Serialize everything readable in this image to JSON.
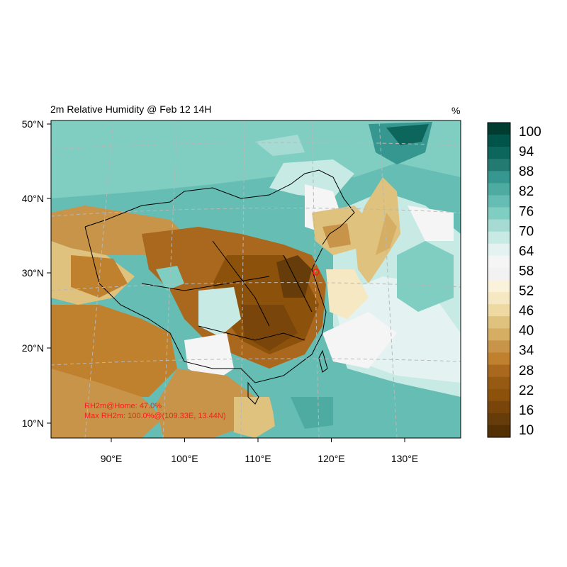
{
  "title": "2m Relative Humidity @ Feb 12 14H",
  "unit": "%",
  "latitude_ticks": [
    {
      "value": 50,
      "label": "50°N"
    },
    {
      "value": 40,
      "label": "40°N"
    },
    {
      "value": 30,
      "label": "30°N"
    },
    {
      "value": 20,
      "label": "20°N"
    },
    {
      "value": 10,
      "label": "10°N"
    }
  ],
  "longitude_ticks": [
    {
      "value": 90,
      "label": "90°E"
    },
    {
      "value": 100,
      "label": "100°E"
    },
    {
      "value": 110,
      "label": "110°E"
    },
    {
      "value": 120,
      "label": "120°E"
    },
    {
      "value": 130,
      "label": "130°E"
    }
  ],
  "colorbar": {
    "labels": [
      "100",
      "94",
      "88",
      "82",
      "76",
      "70",
      "64",
      "58",
      "52",
      "46",
      "40",
      "34",
      "28",
      "22",
      "16",
      "10"
    ],
    "colors": [
      "#003c30",
      "#01544a",
      "#0d665c",
      "#227a70",
      "#35978f",
      "#4daba2",
      "#66bdb4",
      "#80cdc1",
      "#a5dbd2",
      "#c7eae5",
      "#e4f3f1",
      "#f5f5f5",
      "#f2f2f2",
      "#fbf2dc",
      "#f6e8c3",
      "#eed9a3",
      "#dfc27d",
      "#d5ae64",
      "#c7944a",
      "#bf812d",
      "#a9681d",
      "#965a13",
      "#8c510a",
      "#7a450a",
      "#663c0b",
      "#543005"
    ]
  },
  "annotations": {
    "home": "RH2m@Home: 47.0%",
    "max": "Max RH2m: 100.0%@(109.33E, 13.44N)"
  },
  "home_location": {
    "lon": 116.4,
    "lat": 39.9
  }
}
